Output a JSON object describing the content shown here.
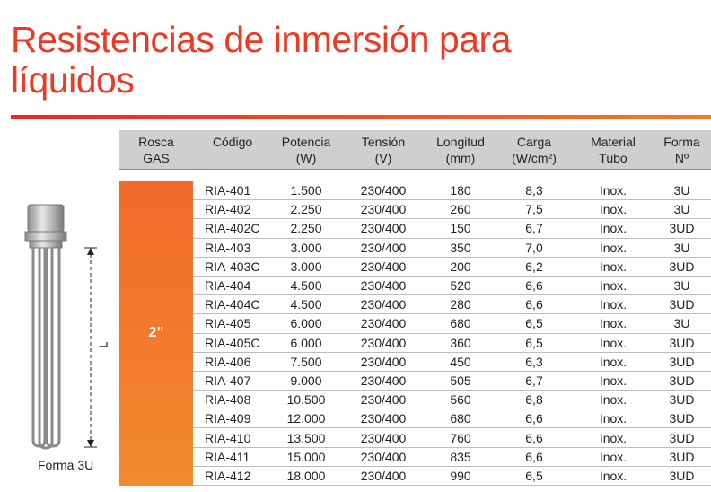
{
  "title": "Resistencias de inmersión para líquidos",
  "caption": "Forma 3U",
  "dimension_label": "L",
  "table": {
    "headers": [
      [
        "Rosca",
        "GAS"
      ],
      [
        "Código"
      ],
      [
        "Potencia",
        "(W)"
      ],
      [
        "Tensión",
        "(V)"
      ],
      [
        "Longitud",
        "(mm)"
      ],
      [
        "Carga",
        "(W/cm²)"
      ],
      [
        "Material",
        "Tubo"
      ],
      [
        "Forma",
        "Nº"
      ]
    ],
    "group": "2”",
    "rows": [
      [
        "RIA-401",
        "1.500",
        "230/400",
        "180",
        "8,3",
        "Inox.",
        "3U"
      ],
      [
        "RIA-402",
        "2.250",
        "230/400",
        "260",
        "7,5",
        "Inox.",
        "3U"
      ],
      [
        "RIA-402C",
        "2.250",
        "230/400",
        "150",
        "6,7",
        "Inox.",
        "3UD"
      ],
      [
        "RIA-403",
        "3.000",
        "230/400",
        "350",
        "7,0",
        "Inox.",
        "3U"
      ],
      [
        "RIA-403C",
        "3.000",
        "230/400",
        "200",
        "6,2",
        "Inox.",
        "3UD"
      ],
      [
        "RIA-404",
        "4.500",
        "230/400",
        "520",
        "6,6",
        "Inox.",
        "3U"
      ],
      [
        "RIA-404C",
        "4.500",
        "230/400",
        "280",
        "6,6",
        "Inox.",
        "3UD"
      ],
      [
        "RIA-405",
        "6.000",
        "230/400",
        "680",
        "6,5",
        "Inox.",
        "3U"
      ],
      [
        "RIA-405C",
        "6.000",
        "230/400",
        "360",
        "6,5",
        "Inox.",
        "3UD"
      ],
      [
        "RIA-406",
        "7.500",
        "230/400",
        "450",
        "6,3",
        "Inox.",
        "3UD"
      ],
      [
        "RIA-407",
        "9.000",
        "230/400",
        "505",
        "6,7",
        "Inox.",
        "3UD"
      ],
      [
        "RIA-408",
        "10.500",
        "230/400",
        "560",
        "6,8",
        "Inox.",
        "3UD"
      ],
      [
        "RIA-409",
        "12.000",
        "230/400",
        "680",
        "6,6",
        "Inox.",
        "3UD"
      ],
      [
        "RIA-410",
        "13.500",
        "230/400",
        "760",
        "6,6",
        "Inox.",
        "3UD"
      ],
      [
        "RIA-411",
        "15.000",
        "230/400",
        "835",
        "6,6",
        "Inox.",
        "3UD"
      ],
      [
        "RIA-412",
        "18.000",
        "230/400",
        "990",
        "6,5",
        "Inox.",
        "3UD"
      ]
    ]
  }
}
